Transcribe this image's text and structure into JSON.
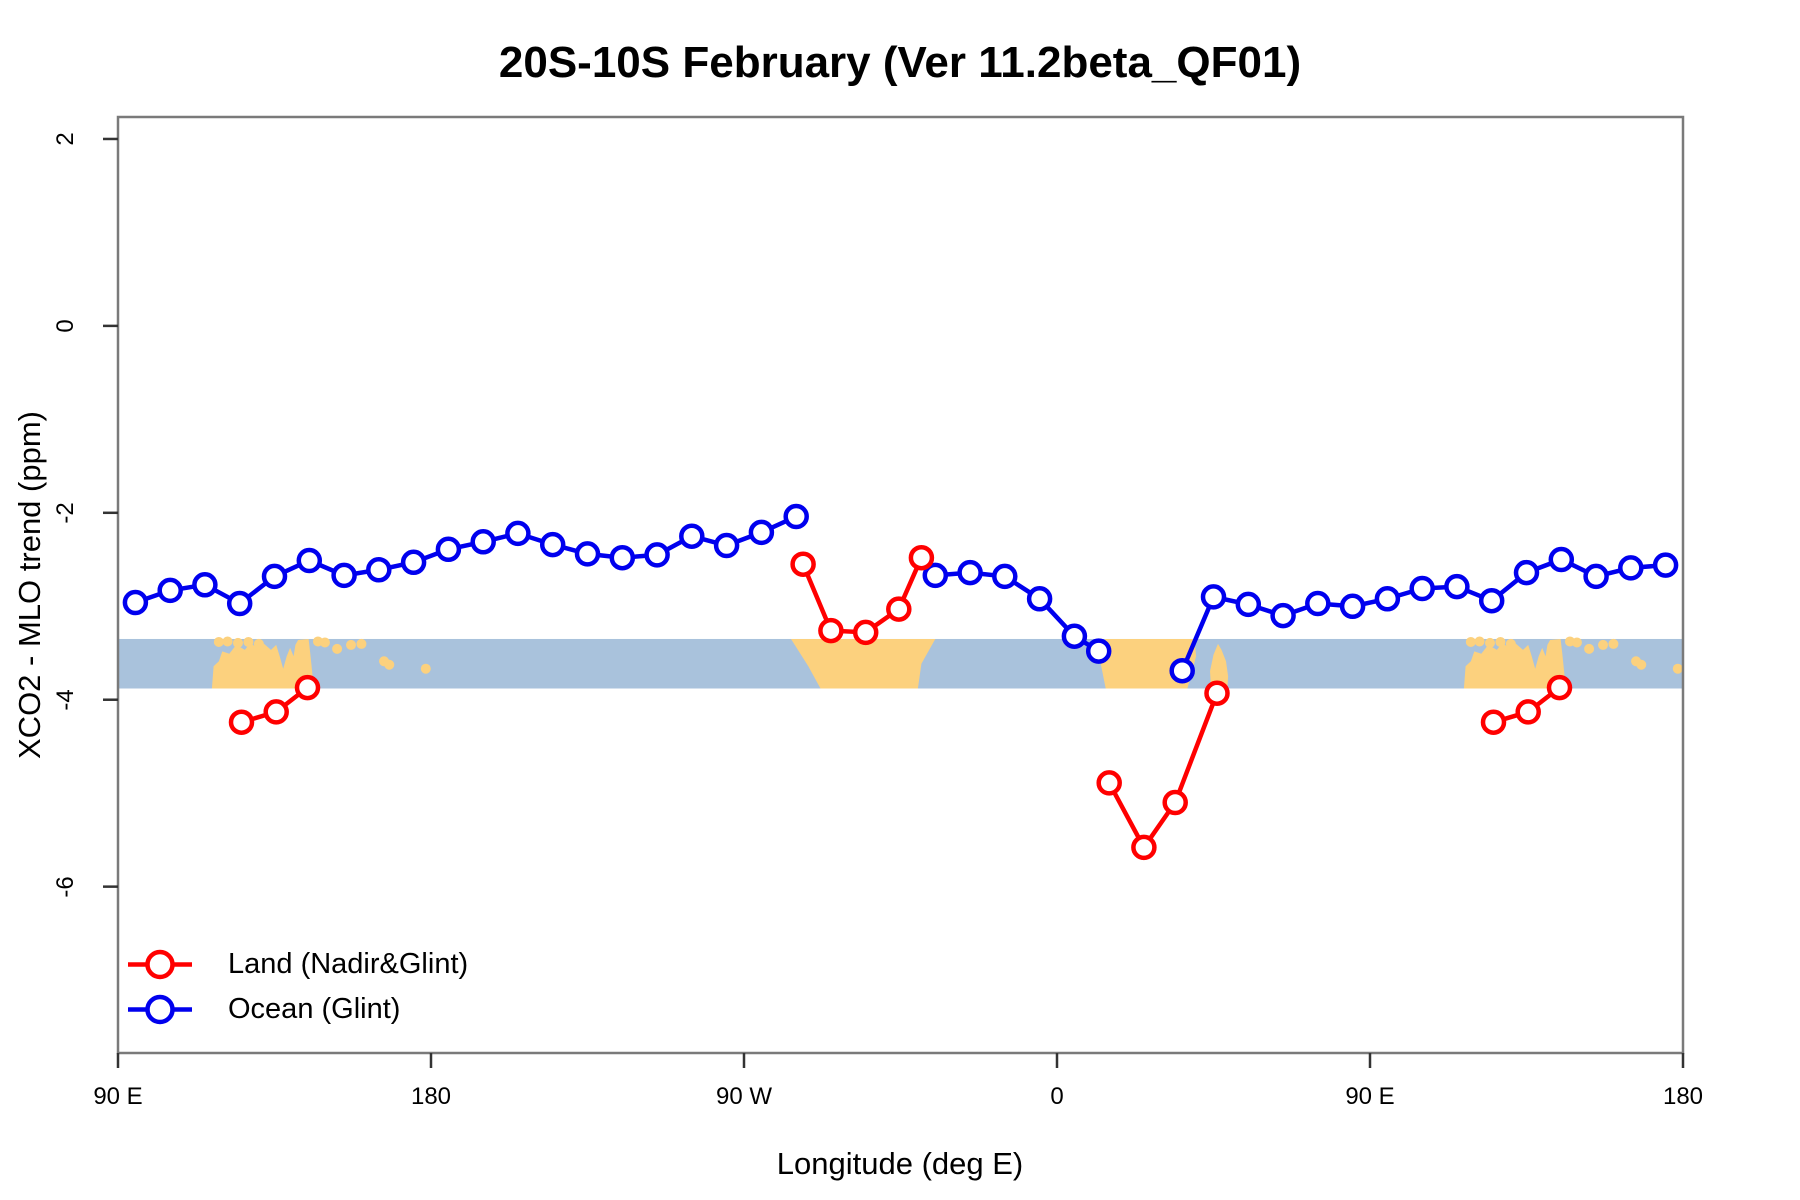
{
  "title": "20S-10S February (Ver 11.2beta_QF01)",
  "chart_data": {
    "type": "line",
    "title": "20S-10S February (Ver 11.2beta_QF01)",
    "xlabel": "Longitude (deg E)",
    "ylabel": "XCO2 - MLO trend (ppm)",
    "xlim": [
      90,
      540
    ],
    "ylim": [
      -7.78,
      2.235
    ],
    "grid": false,
    "x_ticks": [
      {
        "value": 90,
        "label": "90 E"
      },
      {
        "value": 180,
        "label": "180"
      },
      {
        "value": 270,
        "label": "90 W"
      },
      {
        "value": 360,
        "label": "0"
      },
      {
        "value": 450,
        "label": "90 E"
      },
      {
        "value": 540,
        "label": "180"
      }
    ],
    "y_ticks": [
      {
        "value": 2,
        "label": "2"
      },
      {
        "value": 0,
        "label": "0"
      },
      {
        "value": -2,
        "label": "-2"
      },
      {
        "value": -4,
        "label": "-4"
      },
      {
        "value": -6,
        "label": "-6"
      }
    ],
    "series": [
      {
        "name": "Ocean (Glint)",
        "color": "#0000ee",
        "marker": "open-circle",
        "segments": [
          [
            [
              95,
              -2.96
            ],
            [
              105,
              -2.83
            ],
            [
              115,
              -2.77
            ],
            [
              125,
              -2.97
            ],
            [
              135,
              -2.68
            ],
            [
              145,
              -2.51
            ],
            [
              155,
              -2.67
            ],
            [
              165,
              -2.61
            ],
            [
              175,
              -2.53
            ],
            [
              185,
              -2.39
            ],
            [
              195,
              -2.31
            ],
            [
              205,
              -2.22
            ],
            [
              215,
              -2.34
            ],
            [
              225,
              -2.44
            ],
            [
              235,
              -2.48
            ],
            [
              245,
              -2.45
            ],
            [
              255,
              -2.25
            ],
            [
              265,
              -2.35
            ],
            [
              275,
              -2.21
            ],
            [
              285,
              -2.04
            ]
          ],
          [
            [
              325,
              -2.67
            ],
            [
              335,
              -2.64
            ],
            [
              345,
              -2.68
            ],
            [
              355,
              -2.92
            ],
            [
              365,
              -3.32
            ],
            [
              372,
              -3.48
            ]
          ],
          [
            [
              396,
              -3.69
            ],
            [
              405,
              -2.9
            ],
            [
              415,
              -2.98
            ],
            [
              425,
              -3.1
            ],
            [
              435,
              -2.97
            ],
            [
              445,
              -3.0
            ],
            [
              455,
              -2.92
            ],
            [
              465,
              -2.81
            ],
            [
              475,
              -2.79
            ],
            [
              485,
              -2.94
            ],
            [
              495,
              -2.64
            ],
            [
              505,
              -2.5
            ],
            [
              515,
              -2.68
            ],
            [
              525,
              -2.59
            ],
            [
              535,
              -2.56
            ]
          ]
        ]
      },
      {
        "name": "Land (Nadir&Glint)",
        "color": "#ff0000",
        "marker": "open-circle",
        "segments": [
          [
            [
              125.5,
              -4.24
            ],
            [
              135.5,
              -4.13
            ],
            [
              144.5,
              -3.87
            ]
          ],
          [
            [
              287,
              -2.55
            ],
            [
              295,
              -3.26
            ],
            [
              305,
              -3.28
            ],
            [
              314.5,
              -3.03
            ],
            [
              321,
              -2.48
            ]
          ],
          [
            [
              375,
              -4.89
            ],
            [
              385,
              -5.58
            ],
            [
              394,
              -5.1
            ],
            [
              406,
              -3.93
            ]
          ],
          [
            [
              485.5,
              -4.24
            ],
            [
              495.5,
              -4.13
            ],
            [
              504.5,
              -3.87
            ]
          ]
        ]
      }
    ],
    "map_band": {
      "description": "world map strip for latitude band 20S-10S drawn across plot",
      "y_top": -3.35,
      "y_bottom": -3.88,
      "ocean_color": "#a9c2dc",
      "land_color": "#fcd17e",
      "wrap_offset": 360,
      "land_polygons": {
        "australia": [
          [
            117,
            1
          ],
          [
            117.5,
            0.55
          ],
          [
            119,
            0.45
          ],
          [
            120,
            0.25
          ],
          [
            122,
            0.3
          ],
          [
            124,
            0.12
          ],
          [
            126.5,
            0.22
          ],
          [
            128,
            0.08
          ],
          [
            130,
            0.18
          ],
          [
            132,
            0.1
          ],
          [
            134,
            0.22
          ],
          [
            135.5,
            0.12
          ],
          [
            136.5,
            0.35
          ],
          [
            137.5,
            0.6
          ],
          [
            138.5,
            0.35
          ],
          [
            139.5,
            0.18
          ],
          [
            140.5,
            0.35
          ],
          [
            141,
            0.12
          ],
          [
            141.8,
            0.02
          ],
          [
            144.8,
            0.0
          ],
          [
            145.3,
            0.3
          ],
          [
            145.8,
            0.65
          ],
          [
            146.3,
            1
          ]
        ],
        "south_america": [
          [
            283.5,
            0
          ],
          [
            290,
            0
          ],
          [
            300,
            0
          ],
          [
            310,
            0
          ],
          [
            320,
            0
          ],
          [
            325,
            0
          ],
          [
            321,
            0.5
          ],
          [
            320,
            1
          ],
          [
            292,
            1
          ],
          [
            288.5,
            0.55
          ]
        ],
        "africa": [
          [
            371.5,
            0.12
          ],
          [
            374,
            0
          ],
          [
            380,
            0
          ],
          [
            390,
            0
          ],
          [
            399.5,
            0
          ],
          [
            400,
            0.35
          ],
          [
            397.5,
            1
          ],
          [
            374,
            1
          ]
        ],
        "madagascar": [
          [
            404.3,
            1
          ],
          [
            404,
            0.65
          ],
          [
            405,
            0.32
          ],
          [
            406.3,
            0.1
          ],
          [
            407.3,
            0.22
          ],
          [
            408.6,
            0.45
          ],
          [
            409.2,
            0.75
          ],
          [
            409,
            1
          ]
        ]
      },
      "land_specks": [
        [
          119,
          0.06
        ],
        [
          121.5,
          0.05
        ],
        [
          124.5,
          0.08
        ],
        [
          127.5,
          0.06
        ],
        [
          130.5,
          0.1
        ],
        [
          147.5,
          0.05
        ],
        [
          149.5,
          0.07
        ],
        [
          153,
          0.2
        ],
        [
          157,
          0.12
        ],
        [
          160,
          0.1
        ],
        [
          166.5,
          0.45
        ],
        [
          168,
          0.52
        ],
        [
          178.5,
          0.6
        ]
      ]
    }
  },
  "legend": {
    "items": [
      {
        "label": "Land (Nadir&Glint)",
        "color": "#ff0000"
      },
      {
        "label": "Ocean (Glint)",
        "color": "#0000ee"
      }
    ]
  },
  "colors": {
    "background": "#ffffff",
    "frame": "#7a7a7a",
    "tick": "#333333",
    "text": "#000000"
  }
}
